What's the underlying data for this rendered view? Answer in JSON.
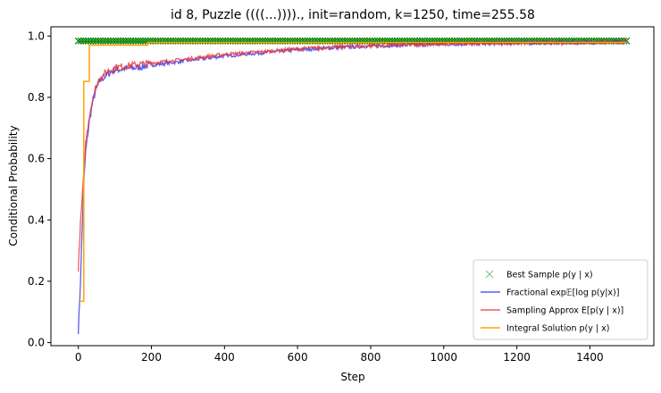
{
  "chart_data": {
    "type": "line",
    "title": "id 8, Puzzle ((((...)))).,  init=random, k=1250, time=255.58",
    "xlabel": "Step",
    "ylabel": "Conditional Probability",
    "xlim": [
      -75,
      1575
    ],
    "ylim": [
      -0.01,
      1.03
    ],
    "xticks": [
      0,
      200,
      400,
      600,
      800,
      1000,
      1200,
      1400
    ],
    "yticks": [
      0.0,
      0.2,
      0.4,
      0.6,
      0.8,
      1.0
    ],
    "xtick_labels": [
      "0",
      "200",
      "400",
      "600",
      "800",
      "1000",
      "1200",
      "1400"
    ],
    "ytick_labels": [
      "0.0",
      "0.2",
      "0.4",
      "0.6",
      "0.8",
      "1.0"
    ],
    "legend_position": "lower-right",
    "series": [
      {
        "name": "Best Sample p(y | x)",
        "style": "markers-x",
        "color": "#008000",
        "x": [
          0,
          1500
        ],
        "y": [
          0.984,
          0.984
        ]
      },
      {
        "name": "Fractional exp𝔼[log p(y|x)]",
        "style": "line",
        "color": "#3333ee",
        "x": [
          0,
          5,
          10,
          15,
          20,
          30,
          40,
          50,
          60,
          80,
          100,
          150,
          200,
          300,
          400,
          500,
          600,
          700,
          800,
          900,
          1000,
          1100,
          1200,
          1300,
          1400,
          1500
        ],
        "y": [
          0.04,
          0.17,
          0.35,
          0.52,
          0.62,
          0.72,
          0.79,
          0.83,
          0.855,
          0.875,
          0.89,
          0.895,
          0.905,
          0.92,
          0.935,
          0.945,
          0.955,
          0.962,
          0.967,
          0.97,
          0.973,
          0.975,
          0.977,
          0.978,
          0.979,
          0.98
        ]
      },
      {
        "name": "Sampling Approx E[p(y | x)]",
        "style": "line",
        "color": "#ee3333",
        "x": [
          0,
          5,
          10,
          15,
          20,
          30,
          40,
          50,
          60,
          80,
          100,
          150,
          200,
          300,
          400,
          500,
          600,
          700,
          800,
          900,
          1000,
          1100,
          1200,
          1300,
          1400,
          1500
        ],
        "y": [
          0.23,
          0.37,
          0.46,
          0.55,
          0.65,
          0.74,
          0.8,
          0.84,
          0.865,
          0.885,
          0.897,
          0.905,
          0.912,
          0.925,
          0.94,
          0.948,
          0.958,
          0.964,
          0.968,
          0.971,
          0.974,
          0.976,
          0.977,
          0.978,
          0.979,
          0.98
        ]
      },
      {
        "name": "Integral Solution p(y | x)",
        "style": "step",
        "color": "#ffa500",
        "x": [
          0,
          15,
          15,
          30,
          30,
          190,
          190,
          1500
        ],
        "y": [
          0.135,
          0.135,
          0.852,
          0.852,
          0.97,
          0.97,
          0.979,
          0.979
        ]
      }
    ]
  }
}
